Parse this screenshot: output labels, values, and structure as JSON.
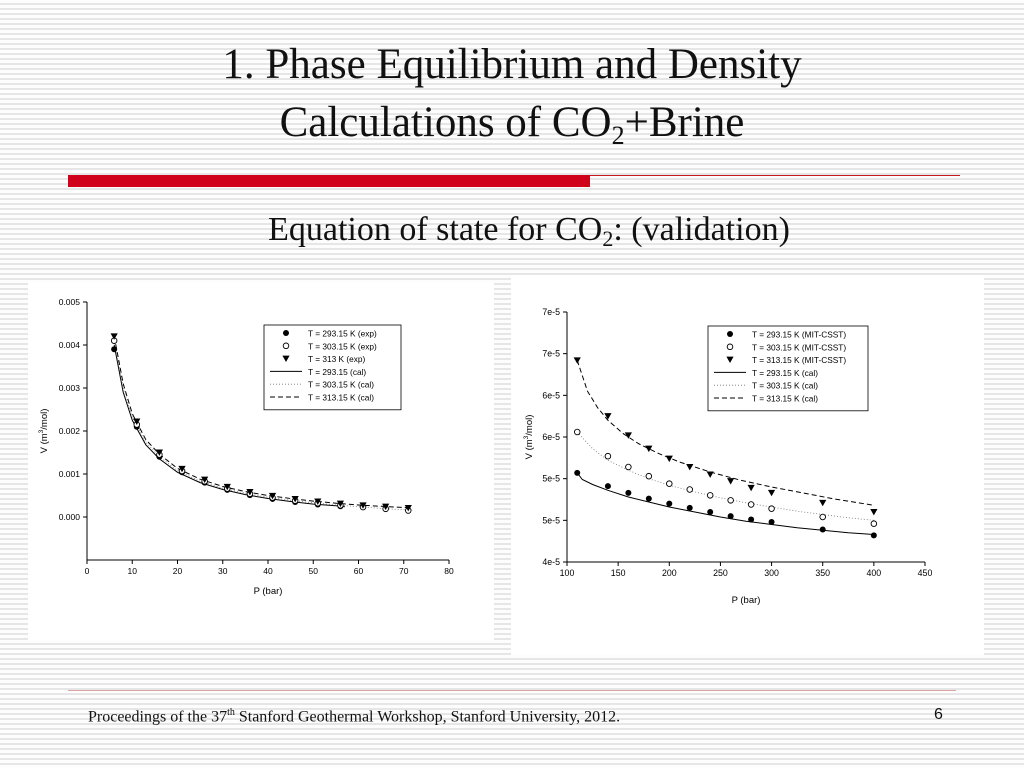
{
  "slide": {
    "title_line1": "1. Phase Equilibrium and Density",
    "title_line2_pre": "Calculations of CO",
    "title_line2_sub": "2",
    "title_line2_post": "+Brine",
    "subtitle_pre": "Equation of state for CO",
    "subtitle_sub": "2",
    "subtitle_post": ": (validation)",
    "footer_pre": "Proceedings of the 37",
    "footer_sup": "th",
    "footer_post": " Stanford Geothermal  Workshop, Stanford University, 2012.",
    "page_number": "6"
  },
  "colors": {
    "accent_red": "#d0021b",
    "background": "#f4f4f4"
  },
  "chart_data": [
    {
      "type": "scatter",
      "xlabel": "P (bar)",
      "ylabel_pre": "V (m",
      "ylabel_sup": "3",
      "ylabel_post": "/mol)",
      "xlim": [
        0,
        80
      ],
      "ylim": [
        -0.001,
        0.005
      ],
      "x_ticks": [
        0,
        10,
        20,
        30,
        40,
        50,
        60,
        70,
        80
      ],
      "y_ticks": [
        0.0,
        0.001,
        0.002,
        0.003,
        0.004,
        0.005
      ],
      "y_tick_labels": [
        "0.000",
        "0.001",
        "0.002",
        "0.003",
        "0.004",
        "0.005"
      ],
      "legend_position": "top-right",
      "series": [
        {
          "name": "T = 293.15 K (exp)",
          "marker": "filled-circle",
          "x": [
            6,
            11,
            16,
            21,
            26,
            31,
            36,
            41,
            46,
            51,
            56
          ],
          "y": [
            0.0039,
            0.0021,
            0.0014,
            0.00104,
            0.0008,
            0.00063,
            0.00051,
            0.00042,
            0.00035,
            0.00029,
            0.00025
          ]
        },
        {
          "name": "T = 303.15 K (exp)",
          "marker": "open-circle",
          "x": [
            6,
            11,
            16,
            21,
            26,
            31,
            36,
            41,
            46,
            51,
            56,
            61,
            66,
            71
          ],
          "y": [
            0.0041,
            0.00215,
            0.00145,
            0.00107,
            0.00083,
            0.00066,
            0.00054,
            0.00045,
            0.00038,
            0.00032,
            0.00027,
            0.00023,
            0.00019,
            0.00015
          ]
        },
        {
          "name": "T = 313 K (exp)",
          "marker": "filled-triangle-down",
          "x": [
            6,
            11,
            16,
            21,
            26,
            31,
            36,
            41,
            46,
            51,
            56,
            61,
            66,
            71
          ],
          "y": [
            0.0042,
            0.00222,
            0.0015,
            0.00112,
            0.00087,
            0.0007,
            0.00058,
            0.00049,
            0.00042,
            0.00036,
            0.00031,
            0.00027,
            0.00024,
            0.00021
          ]
        },
        {
          "name": "T = 293.15 (cal)",
          "line": "solid",
          "x": [
            6,
            8,
            10,
            13,
            16,
            20,
            25,
            30,
            35,
            40,
            45,
            50,
            55,
            57
          ],
          "y": [
            0.004,
            0.0029,
            0.00225,
            0.00168,
            0.00135,
            0.00104,
            0.0008,
            0.00064,
            0.00052,
            0.00043,
            0.00036,
            0.0003,
            0.00026,
            0.00024
          ]
        },
        {
          "name": "T = 303.15 K (cal)",
          "line": "dotted",
          "x": [
            6,
            8,
            10,
            13,
            16,
            20,
            25,
            30,
            35,
            40,
            45,
            50,
            55,
            60,
            65,
            70,
            72
          ],
          "y": [
            0.0041,
            0.003,
            0.00232,
            0.00174,
            0.0014,
            0.00108,
            0.00083,
            0.00067,
            0.00055,
            0.00046,
            0.00039,
            0.00033,
            0.00028,
            0.00024,
            0.0002,
            0.00017,
            0.00016
          ]
        },
        {
          "name": "T = 313.15 K (cal)",
          "line": "dashed",
          "x": [
            6,
            8,
            10,
            13,
            16,
            20,
            25,
            30,
            35,
            40,
            45,
            50,
            55,
            60,
            65,
            70,
            72
          ],
          "y": [
            0.0042,
            0.0031,
            0.0024,
            0.0018,
            0.00146,
            0.00113,
            0.00088,
            0.00071,
            0.00059,
            0.0005,
            0.00043,
            0.00037,
            0.00032,
            0.00028,
            0.00025,
            0.00022,
            0.00021
          ]
        }
      ]
    },
    {
      "type": "scatter",
      "xlabel": "P (bar)",
      "ylabel_pre": "V (m",
      "ylabel_sup": "3",
      "ylabel_post": "/mol)",
      "xlim": [
        100,
        450
      ],
      "ylim": [
        4e-05,
        7e-05
      ],
      "x_ticks": [
        100,
        150,
        200,
        250,
        300,
        350,
        400,
        450
      ],
      "y_ticks": [
        4e-05,
        4.5e-05,
        5e-05,
        5.5e-05,
        6e-05,
        6.5e-05,
        7e-05
      ],
      "y_tick_labels": [
        "4e-5",
        "5e-5",
        "5e-5",
        "6e-5",
        "6e-5",
        "7e-5",
        "7e-5"
      ],
      "legend_position": "top-right",
      "series": [
        {
          "name": "T = 293.15 K (MIT-CSST)",
          "marker": "filled-circle",
          "x": [
            110,
            140,
            160,
            180,
            200,
            220,
            240,
            260,
            280,
            300,
            350,
            400
          ],
          "y": [
            5.07e-05,
            4.91e-05,
            4.83e-05,
            4.76e-05,
            4.7e-05,
            4.65e-05,
            4.6e-05,
            4.55e-05,
            4.51e-05,
            4.48e-05,
            4.39e-05,
            4.32e-05
          ]
        },
        {
          "name": "T = 303.15 K (MIT-CSST)",
          "marker": "open-circle",
          "x": [
            110,
            140,
            160,
            180,
            200,
            220,
            240,
            260,
            280,
            300,
            350,
            400
          ],
          "y": [
            5.56e-05,
            5.27e-05,
            5.14e-05,
            5.03e-05,
            4.94e-05,
            4.87e-05,
            4.8e-05,
            4.74e-05,
            4.69e-05,
            4.64e-05,
            4.54e-05,
            4.46e-05
          ]
        },
        {
          "name": "T = 313.15 K (MIT-CSST)",
          "marker": "filled-triangle-down",
          "x": [
            110,
            140,
            160,
            180,
            200,
            220,
            240,
            260,
            280,
            300,
            350,
            400
          ],
          "y": [
            6.42e-05,
            5.75e-05,
            5.52e-05,
            5.36e-05,
            5.24e-05,
            5.14e-05,
            5.05e-05,
            4.97e-05,
            4.89e-05,
            4.83e-05,
            4.71e-05,
            4.6e-05
          ]
        },
        {
          "name": "T = 293.15 K (cal)",
          "line": "solid",
          "x": [
            110,
            115,
            125,
            140,
            160,
            180,
            200,
            225,
            250,
            275,
            300,
            325,
            350,
            375,
            400
          ],
          "y": [
            5.07e-05,
            4.99e-05,
            4.93e-05,
            4.86e-05,
            4.78e-05,
            4.72e-05,
            4.66e-05,
            4.6e-05,
            4.54e-05,
            4.49e-05,
            4.45e-05,
            4.41e-05,
            4.38e-05,
            4.35e-05,
            4.33e-05
          ]
        },
        {
          "name": "T = 303.15 K (cal)",
          "line": "dotted",
          "x": [
            110,
            125,
            140,
            160,
            180,
            200,
            225,
            250,
            275,
            300,
            325,
            350,
            375,
            400
          ],
          "y": [
            5.56e-05,
            5.36e-05,
            5.22e-05,
            5.1e-05,
            5e-05,
            4.92e-05,
            4.84e-05,
            4.77e-05,
            4.71e-05,
            4.66e-05,
            4.61e-05,
            4.57e-05,
            4.53e-05,
            4.5e-05
          ]
        },
        {
          "name": "T = 313.15 K (cal)",
          "line": "dashed",
          "x": [
            110,
            120,
            130,
            140,
            155,
            170,
            190,
            210,
            240,
            270,
            300,
            330,
            360,
            400
          ],
          "y": [
            6.42e-05,
            6.05e-05,
            5.85e-05,
            5.7e-05,
            5.54e-05,
            5.42e-05,
            5.3e-05,
            5.2e-05,
            5.08e-05,
            4.98e-05,
            4.9e-05,
            4.83e-05,
            4.76e-05,
            4.68e-05
          ]
        }
      ]
    }
  ]
}
